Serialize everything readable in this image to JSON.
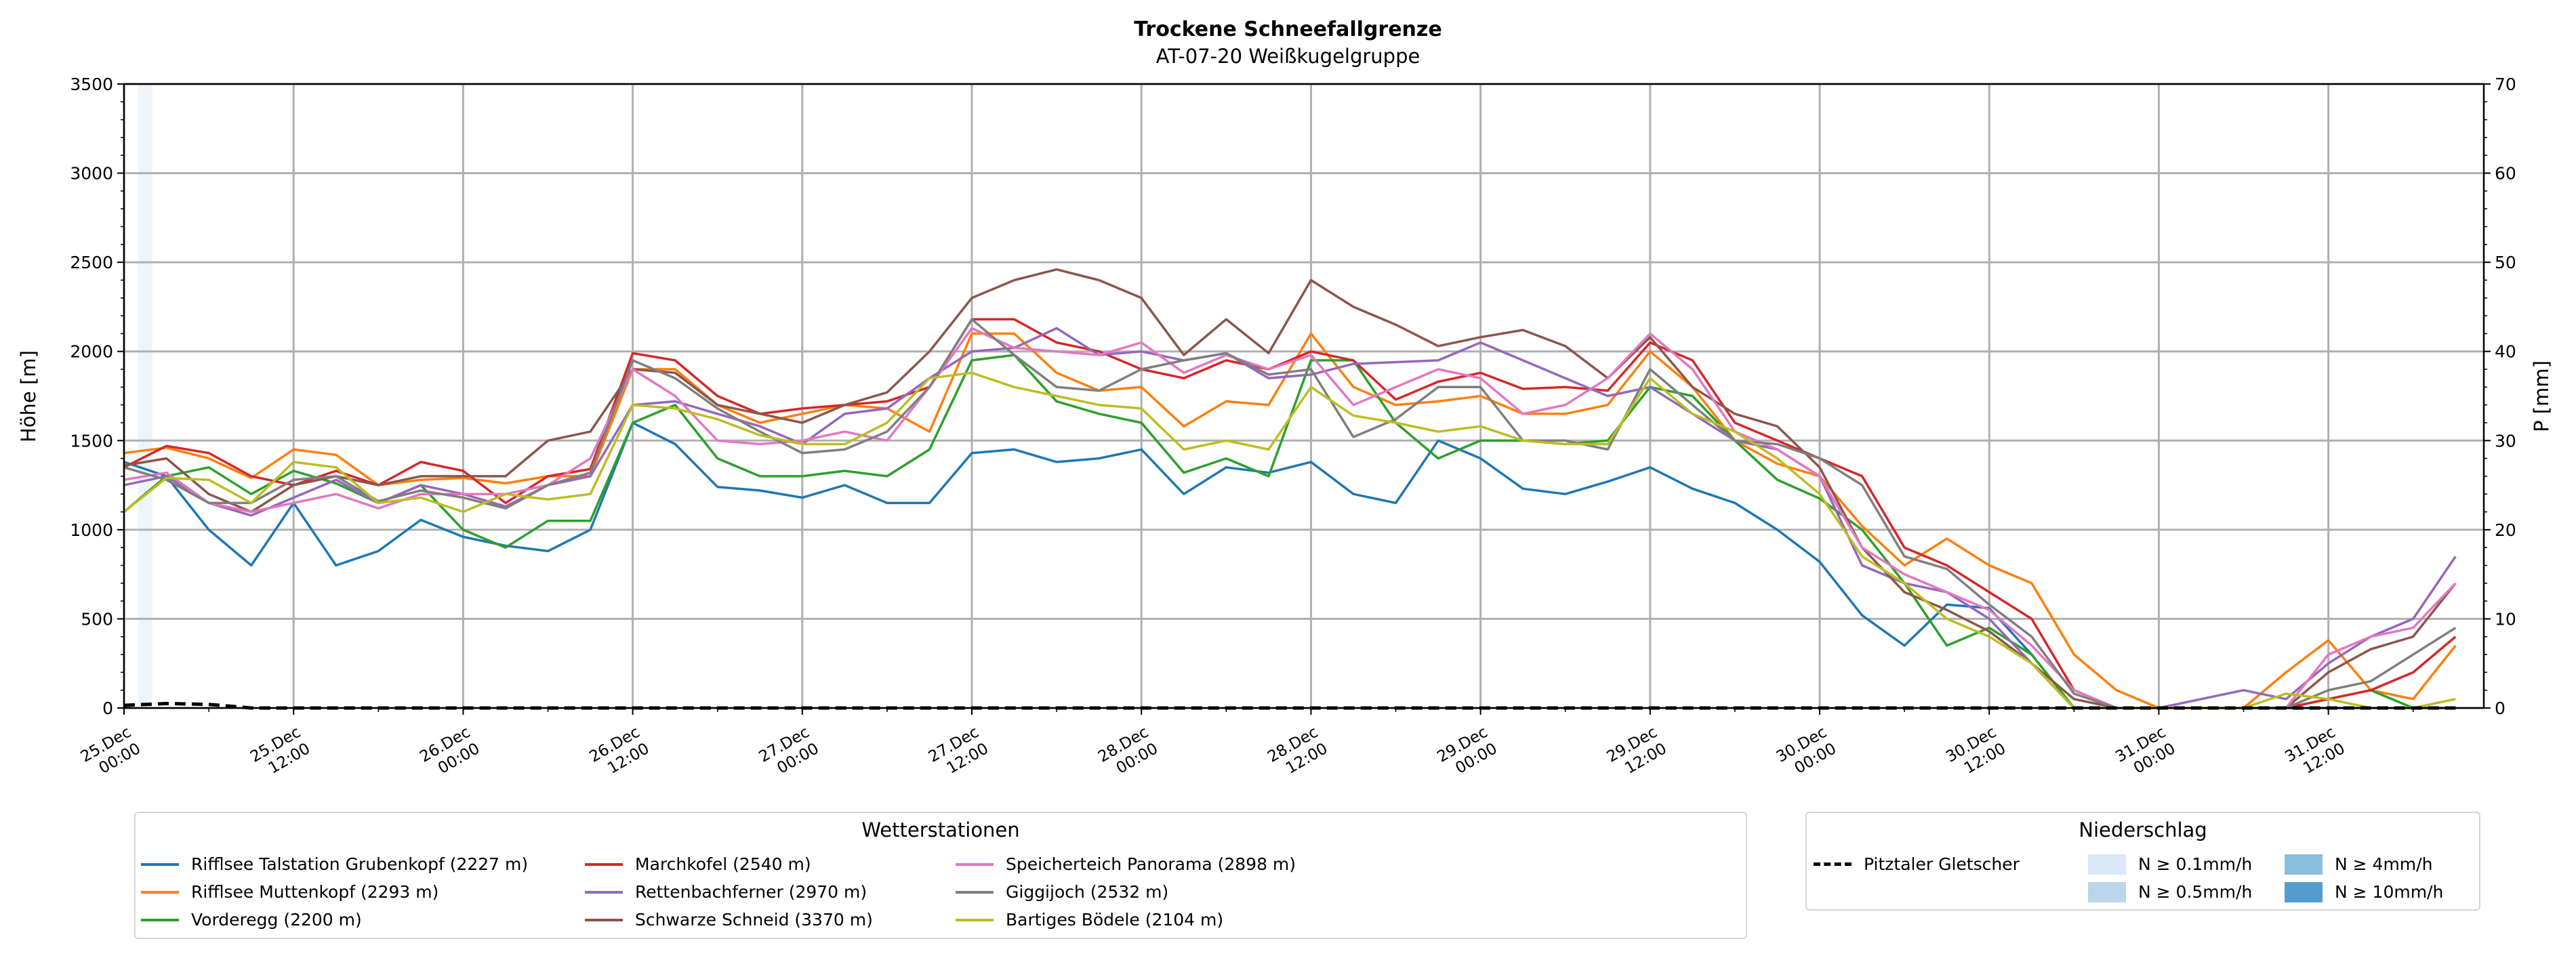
{
  "title": "Trockene Schneefallgrenze",
  "subtitle": "AT-07-20 Weißkugelgruppe",
  "chart_data": {
    "type": "line",
    "title": "Trockene Schneefallgrenze",
    "subtitle": "AT-07-20 Weißkugelgruppe",
    "ylabel": "Höhe [m]",
    "y2label": "P [mm]",
    "ylim": [
      0,
      3500
    ],
    "y2lim": [
      0,
      70
    ],
    "yticks": [
      0,
      500,
      1000,
      1500,
      2000,
      2500,
      3000,
      3500
    ],
    "y2ticks": [
      0,
      10,
      20,
      30,
      40,
      50,
      60,
      70
    ],
    "x_unit": "hours since 25.Dec 00:00",
    "xlim": [
      0,
      167
    ],
    "x_step_hours": 3,
    "xticks": [
      {
        "h": 0,
        "l1": "25.Dec",
        "l2": "00:00"
      },
      {
        "h": 12,
        "l1": "25.Dec",
        "l2": "12:00"
      },
      {
        "h": 24,
        "l1": "26.Dec",
        "l2": "00:00"
      },
      {
        "h": 36,
        "l1": "26.Dec",
        "l2": "12:00"
      },
      {
        "h": 48,
        "l1": "27.Dec",
        "l2": "00:00"
      },
      {
        "h": 60,
        "l1": "27.Dec",
        "l2": "12:00"
      },
      {
        "h": 72,
        "l1": "28.Dec",
        "l2": "00:00"
      },
      {
        "h": 84,
        "l1": "28.Dec",
        "l2": "12:00"
      },
      {
        "h": 96,
        "l1": "29.Dec",
        "l2": "00:00"
      },
      {
        "h": 108,
        "l1": "29.Dec",
        "l2": "12:00"
      },
      {
        "h": 120,
        "l1": "30.Dec",
        "l2": "00:00"
      },
      {
        "h": 132,
        "l1": "30.Dec",
        "l2": "12:00"
      },
      {
        "h": 144,
        "l1": "31.Dec",
        "l2": "00:00"
      },
      {
        "h": 156,
        "l1": "31.Dec",
        "l2": "12:00"
      }
    ],
    "grid": true,
    "legend_title": "Wetterstationen",
    "series": [
      {
        "name": "Rifflsee Talstation Grubenkopf (2227 m)",
        "color": "#1f77b4",
        "values": [
          1380,
          1300,
          1000,
          800,
          1150,
          800,
          880,
          1055,
          960,
          910,
          880,
          1000,
          1600,
          1480,
          1240,
          1220,
          1180,
          1250,
          1150,
          1150,
          1430,
          1450,
          1380,
          1400,
          1450,
          1200,
          1350,
          1320,
          1380,
          1200,
          1150,
          1500,
          1400,
          1230,
          1200,
          1270,
          1350,
          1230,
          1150,
          1000,
          820,
          520,
          350,
          580,
          560,
          300,
          0,
          0,
          0,
          0,
          0,
          0,
          0,
          0,
          0,
          0
        ]
      },
      {
        "name": "Rifflsee Muttenkopf (2293 m)",
        "color": "#ff7f0e",
        "values": [
          1430,
          1460,
          1400,
          1290,
          1450,
          1420,
          1250,
          1280,
          1290,
          1260,
          1300,
          1300,
          1900,
          1900,
          1700,
          1600,
          1650,
          1700,
          1680,
          1550,
          2100,
          2100,
          1880,
          1780,
          1800,
          1580,
          1720,
          1700,
          2100,
          1800,
          1700,
          1720,
          1750,
          1650,
          1650,
          1700,
          2000,
          1800,
          1500,
          1370,
          1300,
          1020,
          800,
          950,
          800,
          700,
          300,
          100,
          0,
          0,
          0,
          200,
          380,
          100,
          50,
          350
        ]
      },
      {
        "name": "Vorderegg (2200 m)",
        "color": "#2ca02c",
        "values": [
          1100,
          1300,
          1350,
          1200,
          1330,
          1260,
          1150,
          1250,
          1000,
          900,
          1050,
          1050,
          1600,
          1700,
          1400,
          1300,
          1300,
          1330,
          1300,
          1450,
          1950,
          1980,
          1720,
          1650,
          1600,
          1320,
          1400,
          1300,
          1950,
          1950,
          1600,
          1400,
          1500,
          1500,
          1480,
          1500,
          1800,
          1750,
          1500,
          1280,
          1175,
          1000,
          700,
          350,
          450,
          300,
          0,
          0,
          0,
          0,
          0,
          0,
          50,
          100,
          0,
          0
        ]
      },
      {
        "name": "Marchkofel (2540 m)",
        "color": "#d62728",
        "values": [
          1350,
          1470,
          1430,
          1300,
          1250,
          1330,
          1250,
          1380,
          1330,
          1150,
          1300,
          1340,
          1990,
          1950,
          1750,
          1650,
          1680,
          1700,
          1720,
          1800,
          2180,
          2180,
          2050,
          2000,
          1900,
          1850,
          1950,
          1900,
          2000,
          1950,
          1730,
          1830,
          1880,
          1790,
          1800,
          1780,
          2050,
          1950,
          1600,
          1500,
          1400,
          1300,
          900,
          800,
          650,
          500,
          100,
          0,
          0,
          0,
          0,
          0,
          50,
          100,
          200,
          400
        ]
      },
      {
        "name": "Rettenbachferner (2970 m)",
        "color": "#9467bd",
        "values": [
          1250,
          1300,
          1150,
          1080,
          1180,
          1280,
          1150,
          1250,
          1200,
          1130,
          1250,
          1300,
          1700,
          1720,
          1650,
          1580,
          1480,
          1650,
          1680,
          1850,
          2000,
          2020,
          2130,
          1980,
          2000,
          1950,
          1990,
          1850,
          1870,
          1930,
          1940,
          1950,
          2050,
          1950,
          1850,
          1750,
          1800,
          1650,
          1500,
          1450,
          1300,
          800,
          700,
          650,
          500,
          250,
          0,
          0,
          0,
          50,
          100,
          50,
          250,
          400,
          500,
          850
        ]
      },
      {
        "name": "Schwarze Schneid (3370 m)",
        "color": "#8c564b",
        "values": [
          1360,
          1400,
          1200,
          1100,
          1250,
          1300,
          1250,
          1300,
          1300,
          1300,
          1500,
          1550,
          1900,
          1880,
          1700,
          1650,
          1600,
          1700,
          1770,
          2000,
          2300,
          2400,
          2460,
          2400,
          2300,
          1980,
          2180,
          1990,
          2400,
          2250,
          2150,
          2030,
          2080,
          2120,
          2030,
          1850,
          2080,
          1800,
          1650,
          1580,
          1350,
          900,
          650,
          550,
          430,
          250,
          50,
          0,
          0,
          0,
          0,
          0,
          200,
          330,
          400,
          700
        ]
      },
      {
        "name": "Speicherteich Panorama (2898 m)",
        "color": "#e377c2",
        "values": [
          1280,
          1320,
          1150,
          1100,
          1150,
          1200,
          1120,
          1200,
          1200,
          1200,
          1250,
          1400,
          1900,
          1750,
          1500,
          1480,
          1500,
          1550,
          1500,
          1800,
          2130,
          2020,
          2000,
          1980,
          2050,
          1880,
          1980,
          1900,
          1980,
          1700,
          1800,
          1900,
          1850,
          1650,
          1700,
          1850,
          2100,
          1900,
          1550,
          1450,
          1300,
          900,
          750,
          650,
          550,
          350,
          100,
          0,
          0,
          0,
          0,
          0,
          300,
          400,
          450,
          700
        ]
      },
      {
        "name": "Giggijoch (2532 m)",
        "color": "#7f7f7f",
        "values": [
          1350,
          1280,
          1150,
          1150,
          1280,
          1300,
          1160,
          1220,
          1180,
          1120,
          1250,
          1320,
          1950,
          1850,
          1680,
          1550,
          1430,
          1450,
          1550,
          1800,
          2180,
          1980,
          1800,
          1780,
          1900,
          1950,
          1990,
          1870,
          1900,
          1520,
          1620,
          1800,
          1800,
          1500,
          1500,
          1450,
          1900,
          1700,
          1500,
          1480,
          1400,
          1250,
          850,
          780,
          580,
          400,
          80,
          0,
          0,
          0,
          0,
          0,
          100,
          150,
          300,
          450
        ]
      },
      {
        "name": "Bartiges Bödele (2104 m)",
        "color": "#bcbd22",
        "values": [
          1100,
          1290,
          1280,
          1150,
          1380,
          1350,
          1150,
          1180,
          1100,
          1200,
          1170,
          1200,
          1700,
          1680,
          1620,
          1530,
          1480,
          1480,
          1600,
          1850,
          1880,
          1800,
          1750,
          1700,
          1680,
          1450,
          1500,
          1450,
          1800,
          1640,
          1600,
          1550,
          1580,
          1500,
          1480,
          1480,
          1850,
          1650,
          1550,
          1400,
          1200,
          850,
          700,
          500,
          400,
          250,
          0,
          0,
          0,
          0,
          0,
          80,
          50,
          0,
          0,
          50
        ]
      }
    ],
    "precipitation": {
      "legend_title": "Niederschlag",
      "station": "Pitztaler Gletscher",
      "values_mm": [
        0.3,
        0.5,
        0.4,
        0,
        0,
        0,
        0,
        0,
        0,
        0,
        0,
        0,
        0,
        0,
        0,
        0,
        0,
        0,
        0,
        0,
        0,
        0,
        0,
        0,
        0,
        0,
        0,
        0,
        0,
        0,
        0,
        0,
        0,
        0,
        0,
        0,
        0,
        0,
        0,
        0,
        0,
        0,
        0,
        0,
        0,
        0,
        0,
        0,
        0,
        0,
        0,
        0,
        0,
        0,
        0,
        0
      ],
      "shaded_hours": [
        {
          "from": 1,
          "to": 2,
          "class": 0
        }
      ],
      "classes": [
        {
          "label": "N ≥ 0.1mm/h",
          "color": "#dbe9f6"
        },
        {
          "label": "N ≥ 0.5mm/h",
          "color": "#bad6eb"
        },
        {
          "label": "N ≥ 4mm/h",
          "color": "#89bedc"
        },
        {
          "label": "N ≥ 10mm/h",
          "color": "#539ecd"
        }
      ]
    }
  }
}
